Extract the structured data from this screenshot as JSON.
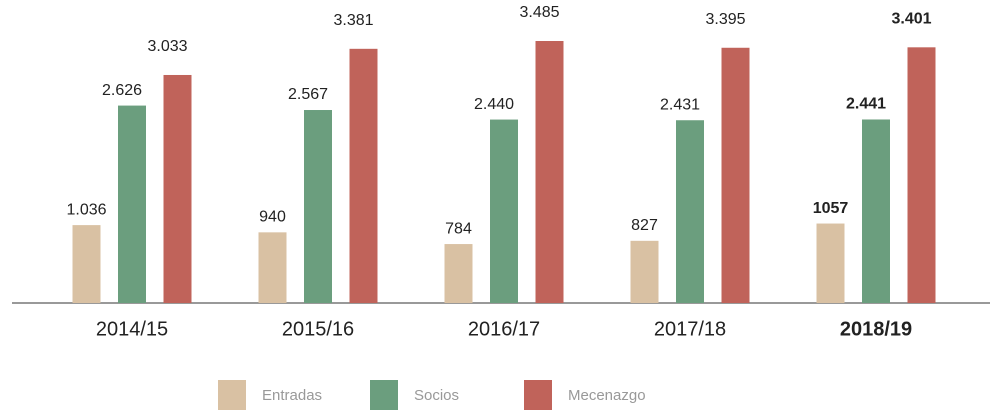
{
  "chart_data": {
    "type": "bar",
    "categories": [
      "2014/15",
      "2015/16",
      "2016/17",
      "2017/18",
      "2018/19"
    ],
    "highlight_index": 4,
    "series": [
      {
        "name": "Entradas",
        "color": "#d9c1a3",
        "values": [
          1036,
          940,
          784,
          827,
          1057
        ],
        "value_labels": [
          "1.036",
          "940",
          "784",
          "827",
          "1057"
        ]
      },
      {
        "name": "Socios",
        "color": "#6b9e7e",
        "values": [
          2626,
          2567,
          2440,
          2431,
          2441
        ],
        "value_labels": [
          "2.626",
          "2.567",
          "2.440",
          "2.431",
          "2.441"
        ]
      },
      {
        "name": "Mecenazgo",
        "color": "#c0635a",
        "values": [
          3033,
          3381,
          3485,
          3395,
          3401
        ],
        "value_labels": [
          "3.033",
          "3.381",
          "3.485",
          "3.395",
          "3.401"
        ]
      }
    ]
  }
}
